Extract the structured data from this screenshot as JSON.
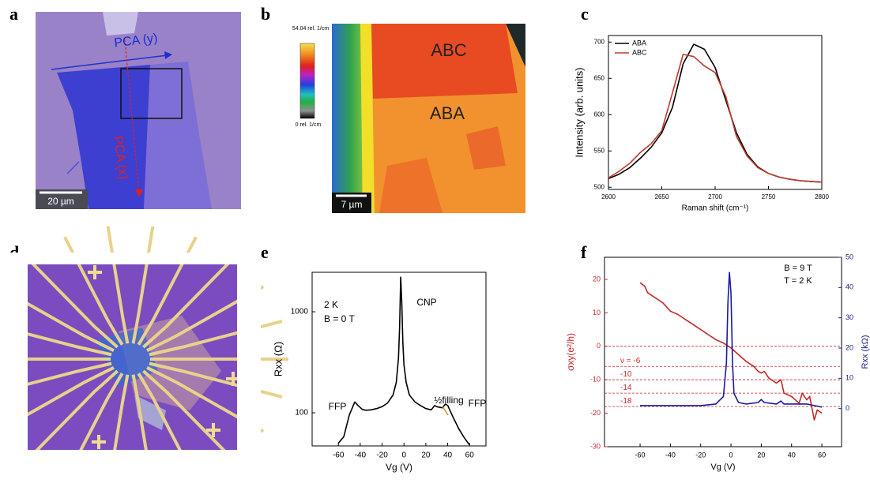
{
  "panel_labels": [
    "a",
    "b",
    "c",
    "d",
    "e",
    "f"
  ],
  "micrograph_a": {
    "pca_y": "PCA (y)",
    "pca_x": "PCA (x)",
    "scale_bar": "20 µm"
  },
  "raman_map_b": {
    "colorbar_max": "54.04 rel. 1/cm",
    "colorbar_min": "0 rel. 1/cm",
    "region_top": "ABC",
    "region_bottom": "ABA",
    "scale_bar": "7 µm"
  },
  "chart_data": [
    {
      "type": "line",
      "xlabel": "Raman shift (cm⁻¹)",
      "ylabel": "Intensity (arb. units)",
      "legend": "upper left",
      "x": [
        2600,
        2610,
        2620,
        2630,
        2640,
        2650,
        2660,
        2670,
        2680,
        2690,
        2700,
        2710,
        2720,
        2730,
        2740,
        2750,
        2760,
        2770,
        2780,
        2790,
        2800
      ],
      "series": [
        {
          "name": "ABA",
          "color": "#000000",
          "values": [
            512,
            518,
            527,
            540,
            555,
            575,
            610,
            670,
            697,
            690,
            665,
            620,
            575,
            545,
            528,
            519,
            514,
            511,
            509,
            508,
            507
          ]
        },
        {
          "name": "ABC",
          "color": "#c0392b",
          "values": [
            513,
            522,
            533,
            548,
            560,
            578,
            630,
            683,
            680,
            667,
            658,
            625,
            570,
            543,
            527,
            519,
            514,
            511,
            509,
            508,
            507
          ]
        }
      ],
      "xlim": [
        2600,
        2800
      ],
      "xticks": [
        2600,
        2650,
        2700,
        2750,
        2800
      ],
      "ylim": [
        497,
        709
      ],
      "yticks": [
        500,
        550,
        600,
        650,
        700
      ]
    },
    {
      "type": "line",
      "xlabel": "Vg (V)",
      "ylabel": "Rxx (Ω)",
      "log_y": true,
      "annotations": [
        "2 K",
        "B = 0 T",
        "CNP",
        "FFP",
        "½filling",
        "FFP"
      ],
      "series": [
        {
          "name": null,
          "color": "#000000",
          "x": [
            -60,
            -55,
            -50,
            -45,
            -42,
            -38,
            -35,
            -30,
            -25,
            -20,
            -15,
            -10,
            -7,
            -5,
            -4,
            -3,
            -2,
            -1,
            0,
            2,
            5,
            10,
            15,
            20,
            25,
            28,
            30,
            35,
            38,
            40,
            45,
            50,
            55,
            60
          ],
          "values": [
            50,
            58,
            95,
            128,
            118,
            108,
            106,
            107,
            110,
            115,
            125,
            150,
            200,
            350,
            700,
            2200,
            1200,
            500,
            300,
            200,
            150,
            128,
            118,
            110,
            107,
            118,
            115,
            112,
            122,
            118,
            90,
            70,
            57,
            48
          ]
        }
      ],
      "xlim": [
        -84,
        75
      ],
      "xticks": [
        -60,
        -40,
        -20,
        0,
        20,
        40,
        60
      ],
      "ylim": [
        47,
        2460
      ],
      "yticks": [
        100,
        1000
      ]
    },
    {
      "type": "line",
      "xlabel": "Vg (V)",
      "ylabel": "σxy(e²/h)",
      "y2label": "Rxx (kΩ)",
      "y_color": "#c62828",
      "y2_color": "#1a237e",
      "annotations": [
        "B = 9 T",
        "T = 2 K"
      ],
      "reference_lines": [
        {
          "value": 0
        },
        {
          "value": -6,
          "label": "ν = -6"
        },
        {
          "value": -10,
          "label": "-10"
        },
        {
          "value": -14,
          "label": "-14"
        },
        {
          "value": -18,
          "label": "-18"
        }
      ],
      "series": [
        {
          "name": null,
          "color": "#c62828",
          "x": [
            -60,
            -57,
            -55,
            -50,
            -45,
            -40,
            -35,
            -30,
            -25,
            -20,
            -15,
            -10,
            -5,
            0,
            5,
            10,
            15,
            18,
            20,
            22,
            25,
            30,
            33,
            35,
            40,
            45,
            47,
            50,
            52,
            55,
            57,
            60
          ],
          "values": [
            19,
            18,
            16,
            14.5,
            13,
            10.5,
            9.5,
            8,
            6.5,
            5,
            3.5,
            2,
            1,
            -0.5,
            -2.5,
            -4.5,
            -6,
            -7.5,
            -8,
            -7.5,
            -9.5,
            -11,
            -10,
            -14,
            -15,
            -17,
            -14,
            -16,
            -15,
            -22,
            -19,
            -20
          ]
        },
        {
          "name": null,
          "color": "#1a1aa0",
          "axis": "y2",
          "x": [
            -60,
            -40,
            -20,
            -10,
            -5,
            -3,
            -2,
            -1,
            0,
            1,
            2,
            5,
            10,
            18,
            20,
            22,
            30,
            33,
            35,
            45,
            50,
            55,
            60
          ],
          "values": [
            1,
            1,
            1,
            1.5,
            4,
            15,
            35,
            45,
            38,
            15,
            5,
            2,
            1.5,
            2,
            3,
            2,
            1.5,
            2.5,
            1.5,
            1.5,
            1.5,
            1,
            0.5
          ]
        }
      ],
      "xlim": [
        -83.5,
        73
      ],
      "xticks": [
        -60,
        -40,
        -20,
        0,
        20,
        40,
        60
      ],
      "ylim": [
        -30,
        26.6
      ],
      "yticks": [
        -30,
        -20,
        -10,
        0,
        10,
        20
      ],
      "y2lim": [
        -12.6,
        50
      ],
      "y2ticks": [
        0,
        10,
        20,
        30,
        40,
        50
      ]
    }
  ]
}
